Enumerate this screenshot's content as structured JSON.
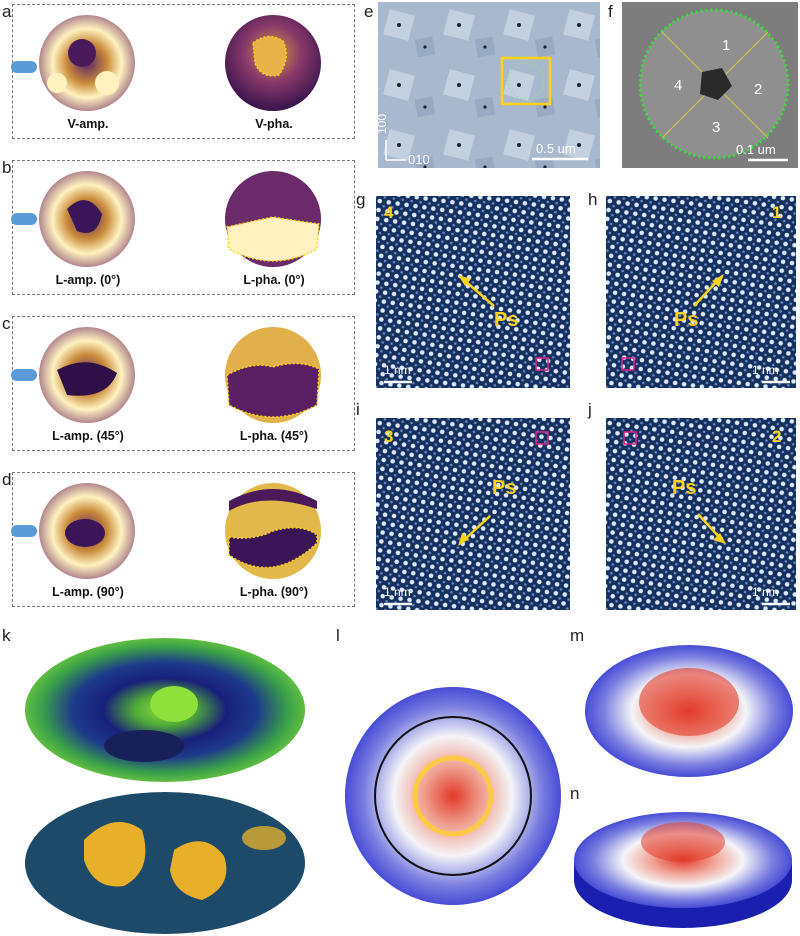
{
  "panel_labels": {
    "a": "a",
    "b": "b",
    "c": "c",
    "d": "d",
    "e": "e",
    "f": "f",
    "g": "g",
    "h": "h",
    "i": "i",
    "j": "j",
    "k": "k",
    "l": "l",
    "m": "m",
    "n": "n"
  },
  "pfm_rows": [
    {
      "amp": "V-amp.",
      "pha": "V-pha."
    },
    {
      "amp": "L-amp. (0°)",
      "pha": "L-pha. (0°)"
    },
    {
      "amp": "L-amp. (45°)",
      "pha": "L-pha. (45°)"
    },
    {
      "amp": "L-amp. (90°)",
      "pha": "L-pha. (90°)"
    }
  ],
  "panel_e": {
    "axis_y": "100",
    "axis_x": "010",
    "scale": "0.5 um"
  },
  "panel_f": {
    "quadrants": [
      "1",
      "2",
      "3",
      "4"
    ],
    "scale": "0.1 um"
  },
  "stem_panels": [
    {
      "id": "g",
      "number": "4",
      "arrow_label": "Ps",
      "scale": "1 nm"
    },
    {
      "id": "h",
      "number": "1",
      "arrow_label": "Ps",
      "scale": "1 nm"
    },
    {
      "id": "i",
      "number": "3",
      "arrow_label": "Ps",
      "scale": "1 nm"
    },
    {
      "id": "j",
      "number": "2",
      "arrow_label": "Ps",
      "scale": "1 nm"
    }
  ],
  "colors": {
    "pfm_dark": "#3a1558",
    "pfm_bright": "#fff2c0",
    "stem_bg": "#13305e",
    "stem_dot": "#dfe8ff",
    "label_yellow": "#ffd21a",
    "dome_blue": "#2b2fcf",
    "dome_red": "#e23a2a"
  }
}
